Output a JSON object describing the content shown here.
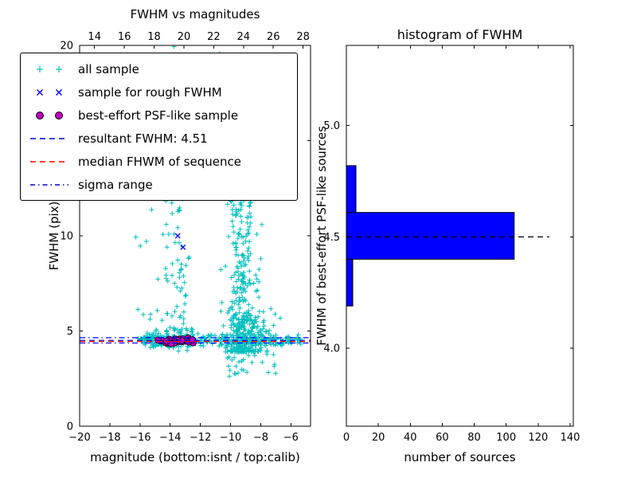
{
  "chart_data": [
    {
      "id": "scatter",
      "type": "scatter",
      "title": "FWHM vs magnitudes",
      "xlabel": "magnitude (bottom:isnt / top:calib)",
      "ylabel": "FWHM (pix)",
      "xlim_bottom": [
        -20,
        -4.7
      ],
      "xlim_top": [
        13.0,
        28.5
      ],
      "ylim": [
        0,
        20
      ],
      "xticks_bottom": [
        -20,
        -18,
        -16,
        -14,
        -12,
        -10,
        -8,
        -6
      ],
      "xticks_top": [
        14,
        16,
        18,
        20,
        22,
        24,
        26,
        28
      ],
      "yticks": [
        0,
        5,
        10,
        15,
        20
      ],
      "grid": false,
      "scatter_seed": 42,
      "hlines": [
        {
          "y": 4.37,
          "style": "dashdot",
          "color": "#0000ff"
        },
        {
          "y": 4.65,
          "style": "dashdot",
          "color": "#0000ff"
        },
        {
          "y": 4.45,
          "style": "dashed",
          "color": "#ff0000"
        },
        {
          "y": 4.51,
          "style": "dashed",
          "color": "#0000cd"
        }
      ],
      "series": [
        {
          "name": "all sample",
          "marker": "plus",
          "color": "#00bfbf",
          "clusters": [
            {
              "count": 230,
              "mag": {
                "dist": "uniform",
                "min": -16.2,
                "max": -5.3
              },
              "fwhm": {
                "dist": "normal",
                "mean": 4.5,
                "sd": 0.16
              }
            },
            {
              "count": 120,
              "mag": {
                "dist": "uniform",
                "min": -16.0,
                "max": -12.4
              },
              "fwhm": {
                "dist": "normal",
                "mean": 4.55,
                "sd": 0.25
              }
            },
            {
              "count": 320,
              "mag": {
                "dist": "normal",
                "mean": -9.2,
                "sd": 0.55
              },
              "fwhm": {
                "dist": "power",
                "min": 3.9,
                "max": 12.5,
                "p": 2.2
              }
            },
            {
              "count": 130,
              "mag": {
                "dist": "normal",
                "mean": -8.8,
                "sd": 0.85
              },
              "fwhm": {
                "dist": "normal",
                "mean": 4.9,
                "sd": 0.7
              }
            },
            {
              "count": 70,
              "mag": {
                "dist": "uniform",
                "min": -14.3,
                "max": -12.7
              },
              "fwhm": {
                "dist": "power",
                "min": 4.6,
                "max": 12.5,
                "p": 1.4
              }
            },
            {
              "count": 55,
              "mag": {
                "dist": "uniform",
                "min": -14.6,
                "max": -8.2
              },
              "fwhm": {
                "dist": "uniform",
                "min": 12.0,
                "max": 20.0
              }
            },
            {
              "count": 25,
              "mag": {
                "dist": "uniform",
                "min": -10.6,
                "max": -7.0
              },
              "fwhm": {
                "dist": "uniform",
                "min": 2.6,
                "max": 3.9
              }
            },
            {
              "count": 18,
              "mag": {
                "dist": "uniform",
                "min": -16.4,
                "max": -13.2
              },
              "fwhm": {
                "dist": "uniform",
                "min": 5.0,
                "max": 11.5
              }
            }
          ]
        },
        {
          "name": "sample for rough FWHM",
          "marker": "x",
          "color": "#0000ff",
          "points": [
            [
              -14.35,
              4.55
            ],
            [
              -14.1,
              4.5
            ],
            [
              -13.9,
              4.62
            ],
            [
              -13.7,
              4.48
            ],
            [
              -13.45,
              4.55
            ],
            [
              -13.2,
              4.52
            ],
            [
              -12.95,
              4.6
            ],
            [
              -12.7,
              4.5
            ],
            [
              -13.5,
              10.0
            ],
            [
              -13.15,
              9.4
            ]
          ]
        },
        {
          "name": "best-effort PSF-like sample",
          "marker": "circle",
          "color": "#bf00bf",
          "edge": "#000000",
          "clusters": [
            {
              "count": 30,
              "mag": {
                "dist": "uniform",
                "min": -14.85,
                "max": -12.45
              },
              "fwhm": {
                "dist": "normal",
                "mean": 4.5,
                "sd": 0.07
              }
            }
          ]
        }
      ],
      "legend": {
        "entries": [
          {
            "label": "all sample",
            "marker": "plus",
            "color": "#00bfbf"
          },
          {
            "label": "sample for rough FWHM",
            "marker": "x",
            "color": "#0000ff"
          },
          {
            "label": "best-effort PSF-like sample",
            "marker": "circle",
            "color": "#bf00bf",
            "edge": "#000000"
          },
          {
            "label": "resultant FWHM: 4.51",
            "marker": "dashed-line",
            "color": "#0000cd"
          },
          {
            "label": "median FHWM of sequence",
            "marker": "dashed-line",
            "color": "#ff0000"
          },
          {
            "label": "sigma range",
            "marker": "dashdot-line",
            "color": "#0000cd"
          }
        ]
      },
      "resultant_fwhm": 4.51
    },
    {
      "id": "histogram",
      "type": "bar",
      "orientation": "horizontal",
      "title": "histogram of FWHM",
      "xlabel": "number of sources",
      "ylabel": "FWHM of best-effort PSF-like sources",
      "xlim": [
        0,
        142
      ],
      "ylim": [
        3.65,
        5.36
      ],
      "xticks": [
        0,
        20,
        40,
        60,
        80,
        100,
        120,
        140
      ],
      "yticks": [
        4.0,
        4.5,
        5.0
      ],
      "ytick_decimals": 1,
      "grid": false,
      "bar_color": "#0000ff",
      "bins": [
        {
          "from": 4.19,
          "to": 4.4,
          "count": 4
        },
        {
          "from": 4.4,
          "to": 4.61,
          "count": 105
        },
        {
          "from": 4.61,
          "to": 4.82,
          "count": 6
        }
      ],
      "hline": {
        "y": 4.5,
        "style": "dashed",
        "color": "#000000",
        "x_end": 127
      }
    }
  ]
}
